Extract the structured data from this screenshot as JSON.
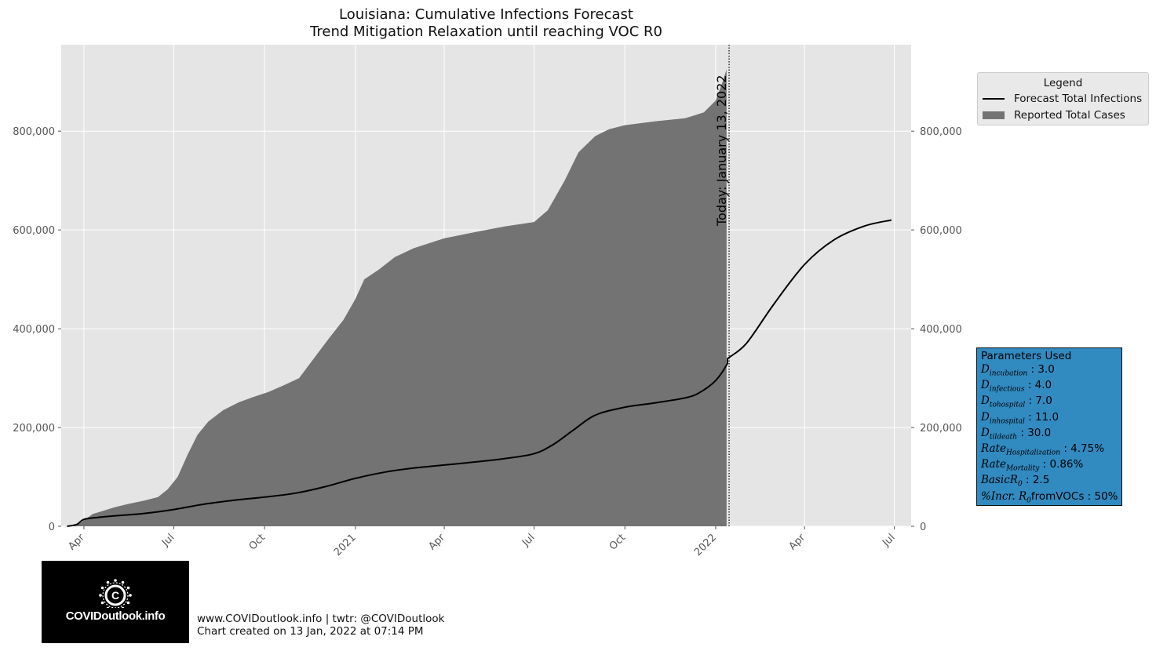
{
  "chart_data": {
    "type": "area",
    "title": "Louisiana: Cumulative Infections Forecast",
    "subtitle": "Trend Mitigation Relaxation until reaching VOC R0",
    "xlabel": "",
    "ylabel": "",
    "ylim": [
      0,
      975000
    ],
    "xlim": [
      "2020-03-09",
      "2022-07-18"
    ],
    "grid": true,
    "legend_placement": "outside-top-right",
    "y_ticks": [
      0,
      200000,
      400000,
      600000,
      800000
    ],
    "y_tick_labels": [
      "0",
      "200,000",
      "400,000",
      "600,000",
      "800,000"
    ],
    "x_ticks": [
      "2020-04-01",
      "2020-07-01",
      "2020-10-01",
      "2021-01-01",
      "2021-04-01",
      "2021-07-01",
      "2021-10-01",
      "2022-01-01",
      "2022-04-01",
      "2022-07-01"
    ],
    "x_tick_labels": [
      "Apr",
      "Jul",
      "Oct",
      "2021",
      "Apr",
      "Jul",
      "Oct",
      "2022",
      "Apr",
      "Jul"
    ],
    "today_date": "2022-01-13",
    "today_label": "Today: January 13, 2022",
    "legend_title": "Legend",
    "colors": {
      "reported_fill": "#737373",
      "forecast_line": "#000000",
      "plot_background": "#e5e5e5",
      "grid": "#ffffff",
      "params_box": "#318ac0"
    },
    "series": [
      {
        "name": "Reported Total Cases",
        "kind": "bar_area",
        "points": [
          [
            "2020-03-09",
            0
          ],
          [
            "2020-03-20",
            200
          ],
          [
            "2020-03-28",
            6000
          ],
          [
            "2020-04-01",
            12000
          ],
          [
            "2020-04-10",
            25000
          ],
          [
            "2020-04-20",
            31000
          ],
          [
            "2020-05-01",
            38000
          ],
          [
            "2020-05-15",
            45000
          ],
          [
            "2020-06-01",
            52000
          ],
          [
            "2020-06-15",
            59000
          ],
          [
            "2020-06-25",
            75000
          ],
          [
            "2020-07-05",
            100000
          ],
          [
            "2020-07-15",
            145000
          ],
          [
            "2020-07-25",
            185000
          ],
          [
            "2020-08-05",
            212000
          ],
          [
            "2020-08-20",
            235000
          ],
          [
            "2020-09-05",
            251000
          ],
          [
            "2020-09-20",
            262000
          ],
          [
            "2020-10-05",
            272000
          ],
          [
            "2020-10-20",
            285000
          ],
          [
            "2020-11-05",
            300000
          ],
          [
            "2020-11-20",
            340000
          ],
          [
            "2020-12-05",
            380000
          ],
          [
            "2020-12-20",
            418000
          ],
          [
            "2021-01-01",
            460000
          ],
          [
            "2021-01-10",
            500000
          ],
          [
            "2021-01-25",
            520000
          ],
          [
            "2021-02-10",
            545000
          ],
          [
            "2021-03-01",
            563000
          ],
          [
            "2021-04-01",
            583000
          ],
          [
            "2021-05-01",
            595000
          ],
          [
            "2021-06-01",
            607000
          ],
          [
            "2021-07-01",
            616000
          ],
          [
            "2021-07-15",
            640000
          ],
          [
            "2021-08-01",
            700000
          ],
          [
            "2021-08-15",
            757000
          ],
          [
            "2021-09-01",
            790000
          ],
          [
            "2021-09-15",
            804000
          ],
          [
            "2021-10-01",
            812000
          ],
          [
            "2021-11-01",
            820000
          ],
          [
            "2021-12-01",
            826000
          ],
          [
            "2021-12-20",
            838000
          ],
          [
            "2022-01-01",
            862000
          ],
          [
            "2022-01-08",
            900000
          ],
          [
            "2022-01-12",
            925000
          ]
        ]
      },
      {
        "name": "Forecast Total Infections",
        "kind": "line",
        "points": [
          [
            "2020-03-15",
            0
          ],
          [
            "2020-03-25",
            4000
          ],
          [
            "2020-04-01",
            14000
          ],
          [
            "2020-04-15",
            18000
          ],
          [
            "2020-05-01",
            21000
          ],
          [
            "2020-06-01",
            26000
          ],
          [
            "2020-07-01",
            34000
          ],
          [
            "2020-08-01",
            45000
          ],
          [
            "2020-09-01",
            53000
          ],
          [
            "2020-10-01",
            59000
          ],
          [
            "2020-11-01",
            67000
          ],
          [
            "2020-12-01",
            80000
          ],
          [
            "2021-01-01",
            97000
          ],
          [
            "2021-02-01",
            110000
          ],
          [
            "2021-03-01",
            118000
          ],
          [
            "2021-04-01",
            124000
          ],
          [
            "2021-05-01",
            130000
          ],
          [
            "2021-06-01",
            137000
          ],
          [
            "2021-07-01",
            147000
          ],
          [
            "2021-07-20",
            165000
          ],
          [
            "2021-08-10",
            195000
          ],
          [
            "2021-09-01",
            225000
          ],
          [
            "2021-10-01",
            241000
          ],
          [
            "2021-11-01",
            250000
          ],
          [
            "2021-12-01",
            260000
          ],
          [
            "2021-12-15",
            270000
          ],
          [
            "2022-01-01",
            295000
          ],
          [
            "2022-01-13",
            330000
          ],
          [
            "2022-01-13",
            339000
          ],
          [
            "2022-02-01",
            370000
          ],
          [
            "2022-03-01",
            450000
          ],
          [
            "2022-04-01",
            530000
          ],
          [
            "2022-05-01",
            580000
          ],
          [
            "2022-06-01",
            608000
          ],
          [
            "2022-06-28",
            620000
          ]
        ]
      }
    ]
  },
  "params": {
    "title": "Parameters Used",
    "items": [
      {
        "sym": "D",
        "sub": "incubation",
        "value": " : 3.0"
      },
      {
        "sym": "D",
        "sub": "infectious",
        "value": " : 4.0"
      },
      {
        "sym": "D",
        "sub": "tohospital",
        "value": " : 7.0"
      },
      {
        "sym": "D",
        "sub": "inhospital",
        "value": " : 11.0"
      },
      {
        "sym": "D",
        "sub": "tildeath",
        "value": " : 30.0"
      },
      {
        "sym": "Rate",
        "sub": "Hospitalization",
        "value": " : 4.75%"
      },
      {
        "sym": "Rate",
        "sub": "Mortality",
        "value": " : 0.86%"
      },
      {
        "sym": "BasicR",
        "sub": "0",
        "value": " : 2.5"
      },
      {
        "sym": "%Incr. R",
        "sub": "0",
        "value": "fromVOCs : 50%"
      }
    ]
  },
  "logo_text": "COVIDoutlook.info",
  "footer": {
    "line1": "www.COVIDoutlook.info | twtr: @COVIDoutlook",
    "line2": "Chart created on 13 Jan, 2022 at 07:14 PM"
  }
}
